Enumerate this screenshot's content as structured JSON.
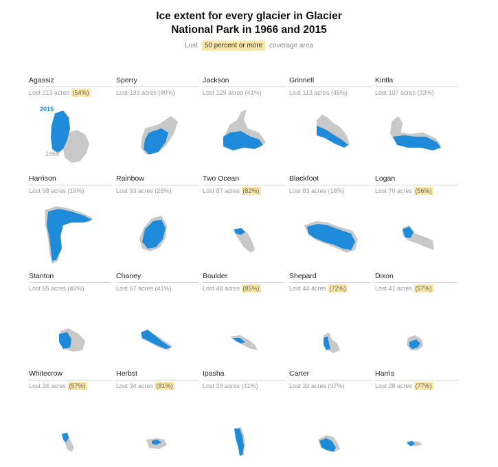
{
  "title_lines": [
    "Ice extent for every glacier in Glacier",
    "National Park in 1966 and 2015"
  ],
  "legend": {
    "prefix": "Lost",
    "highlight": "50 percent or more",
    "suffix": "coverage area"
  },
  "colors": {
    "ice_2015": "#1f8ad8",
    "ice_1966": "#c8c8c8",
    "highlight": "#fbe7a6"
  },
  "chart_data": {
    "type": "small-multiples",
    "labels": {
      "year_2015": "2015",
      "year_1966": "1966"
    },
    "highlight_threshold_percent": 50,
    "glaciers": [
      {
        "name": "Agassiz",
        "lost_label": "Lost 213 acres",
        "pct_label": "(54%)",
        "lost_acres": 213,
        "pct_lost": 54
      },
      {
        "name": "Sperry",
        "lost_label": "Lost 133 acres",
        "pct_label": "(40%)",
        "lost_acres": 133,
        "pct_lost": 40
      },
      {
        "name": "Jackson",
        "lost_label": "Lost 129 acres",
        "pct_label": "(41%)",
        "lost_acres": 129,
        "pct_lost": 41
      },
      {
        "name": "Grinnell",
        "lost_label": "Lost 113 acres",
        "pct_label": "(45%)",
        "lost_acres": 113,
        "pct_lost": 45
      },
      {
        "name": "Kintla",
        "lost_label": "Lost 107 acres",
        "pct_label": "(33%)",
        "lost_acres": 107,
        "pct_lost": 33
      },
      {
        "name": "Harrison",
        "lost_label": "Lost 98 acres",
        "pct_label": "(19%)",
        "lost_acres": 98,
        "pct_lost": 19
      },
      {
        "name": "Rainbow",
        "lost_label": "Lost 93 acres",
        "pct_label": "(26%)",
        "lost_acres": 93,
        "pct_lost": 26
      },
      {
        "name": "Two Ocean",
        "lost_label": "Lost 87 acres",
        "pct_label": "(82%)",
        "lost_acres": 87,
        "pct_lost": 82
      },
      {
        "name": "Blackfoot",
        "lost_label": "Lost 83 acres",
        "pct_label": "(18%)",
        "lost_acres": 83,
        "pct_lost": 18
      },
      {
        "name": "Logan",
        "lost_label": "Lost 70 acres",
        "pct_label": "(56%)",
        "lost_acres": 70,
        "pct_lost": 56
      },
      {
        "name": "Stanton",
        "lost_label": "Lost 65 acres",
        "pct_label": "(49%)",
        "lost_acres": 65,
        "pct_lost": 49
      },
      {
        "name": "Chaney",
        "lost_label": "Lost 57 acres",
        "pct_label": "(41%)",
        "lost_acres": 57,
        "pct_lost": 41
      },
      {
        "name": "Boulder",
        "lost_label": "Lost 48 acres",
        "pct_label": "(85%)",
        "lost_acres": 48,
        "pct_lost": 85
      },
      {
        "name": "Shepard",
        "lost_label": "Lost 44 acres",
        "pct_label": "(72%)",
        "lost_acres": 44,
        "pct_lost": 72
      },
      {
        "name": "Dixon",
        "lost_label": "Lost 41 acres",
        "pct_label": "(57%)",
        "lost_acres": 41,
        "pct_lost": 57
      },
      {
        "name": "Whitecrow",
        "lost_label": "Lost 34 acres",
        "pct_label": "(57%)",
        "lost_acres": 34,
        "pct_lost": 57
      },
      {
        "name": "Herbst",
        "lost_label": "Lost 34 acres",
        "pct_label": "(81%)",
        "lost_acres": 34,
        "pct_lost": 81
      },
      {
        "name": "Ipasha",
        "lost_label": "Lost 33 acres",
        "pct_label": "(41%)",
        "lost_acres": 33,
        "pct_lost": 41
      },
      {
        "name": "Carter",
        "lost_label": "Lost 32 acres",
        "pct_label": "(37%)",
        "lost_acres": 32,
        "pct_lost": 37
      },
      {
        "name": "Harris",
        "lost_label": "Lost 28 acres",
        "pct_label": "(77%)",
        "lost_acres": 28,
        "pct_lost": 77
      }
    ]
  }
}
